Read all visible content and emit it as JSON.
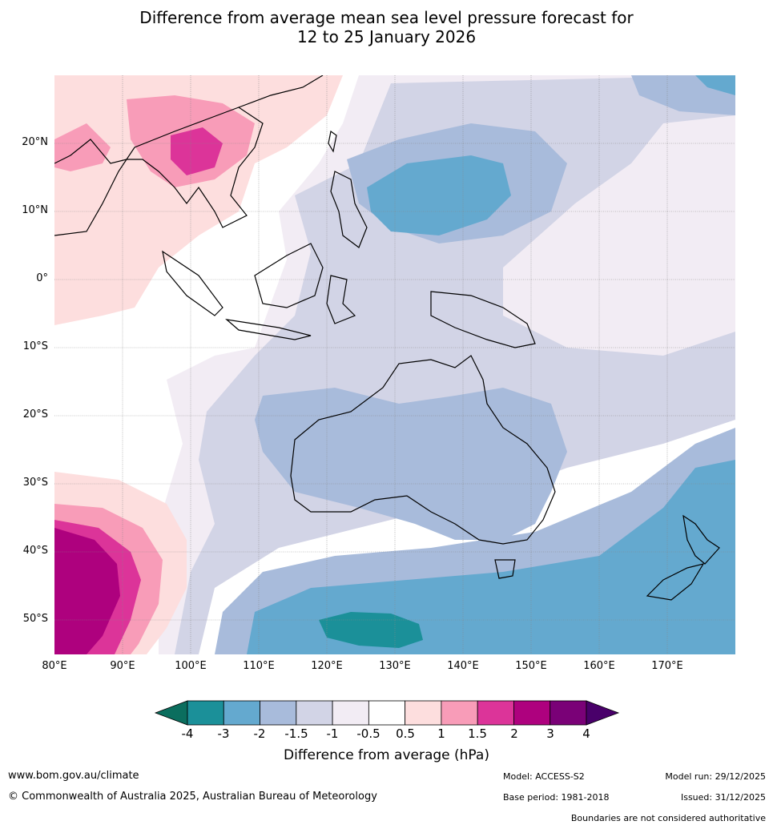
{
  "title": {
    "line1": "Difference from average mean sea level pressure forecast for",
    "line2": "12 to 25 January 2026"
  },
  "map": {
    "lat_labels": [
      "20°N",
      "10°N",
      "0°",
      "10°S",
      "20°S",
      "30°S",
      "40°S",
      "50°S"
    ],
    "lon_labels": [
      "80°E",
      "90°E",
      "100°E",
      "110°E",
      "120°E",
      "130°E",
      "140°E",
      "150°E",
      "160°E",
      "170°E"
    ]
  },
  "colorbar": {
    "ticks": [
      "-4",
      "-3",
      "-2",
      "-1.5",
      "-1",
      "-0.5",
      "0.5",
      "1",
      "1.5",
      "2",
      "3",
      "4"
    ],
    "colors": [
      "#0b6e5e",
      "#1b9099",
      "#64a9cf",
      "#a8bbdb",
      "#d2d4e6",
      "#f2ecf4",
      "#ffffff",
      "#fddede",
      "#f89cb8",
      "#dc3499",
      "#ae017e",
      "#7a0177",
      "#49006a"
    ],
    "title": "Difference from average (hPa)"
  },
  "footer": {
    "url": "www.bom.gov.au/climate",
    "copyright": "© Commonwealth of Australia 2025, Australian Bureau of Meteorology",
    "model": "Model: ACCESS-S2",
    "base_period": "Base period: 1981-2018",
    "model_run": "Model run: 29/12/2025",
    "issued": "Issued: 31/12/2025",
    "disclaimer": "Boundaries are not considered authoritative"
  }
}
